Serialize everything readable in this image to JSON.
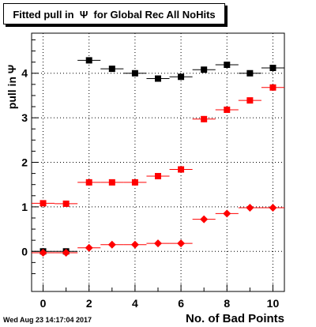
{
  "timestamp": "Wed Aug 23 14:17:04 2017",
  "chart_data": {
    "type": "scatter",
    "title": "Fitted pull in  Ψ  for Global Rec All NoHits",
    "xlabel": "No. of Bad Points",
    "ylabel": "pull in  Ψ",
    "xlim": [
      -0.5,
      10.5
    ],
    "ylim": [
      -0.9,
      4.9
    ],
    "grid": true,
    "xticks": [
      0,
      2,
      4,
      6,
      8,
      10
    ],
    "yticks": [
      0,
      1,
      2,
      3,
      4
    ],
    "x": [
      0,
      1,
      2,
      3,
      4,
      5,
      6,
      7,
      8,
      9,
      10
    ],
    "series": [
      {
        "marker": "square",
        "color": "#000000",
        "values": [
          0.0,
          0.0,
          4.29,
          4.1,
          4.0,
          3.88,
          3.92,
          4.08,
          4.19,
          4.0,
          4.12
        ],
        "yerr": [
          0.04,
          0.04,
          0.04,
          0.04,
          0.04,
          0.04,
          0.04,
          0.04,
          0.04,
          0.04,
          0.04
        ]
      },
      {
        "marker": "square",
        "color": "#ff0000",
        "values": [
          1.08,
          1.07,
          1.55,
          1.55,
          1.55,
          1.69,
          1.84,
          2.97,
          3.18,
          3.39,
          3.68
        ],
        "yerr": [
          0.05,
          0.05,
          0.03,
          0.03,
          0.03,
          0.03,
          0.03,
          0.07,
          0.03,
          0.05,
          0.03
        ]
      },
      {
        "marker": "diamond",
        "color": "#ff0000",
        "values": [
          -0.03,
          -0.03,
          0.08,
          0.15,
          0.15,
          0.18,
          0.18,
          0.72,
          0.85,
          0.98,
          0.98
        ],
        "yerr": [
          0.03,
          0.03,
          0.03,
          0.03,
          0.03,
          0.03,
          0.03,
          0.03,
          0.03,
          0.03,
          0.03
        ]
      }
    ]
  }
}
